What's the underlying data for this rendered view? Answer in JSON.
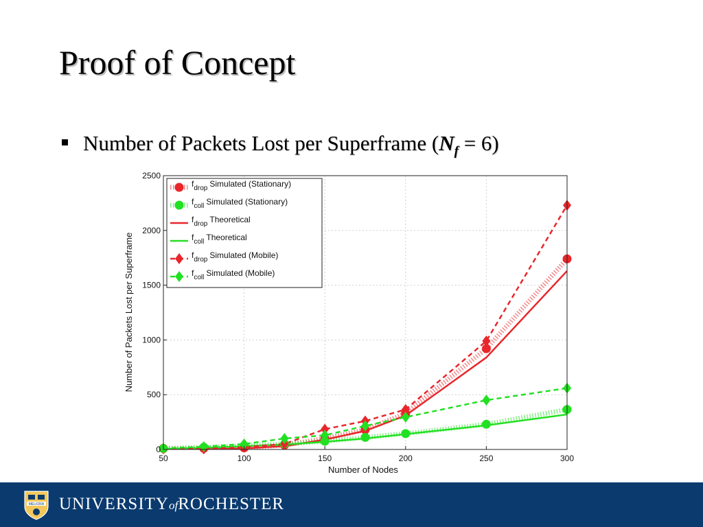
{
  "slide": {
    "title": "Proof of Concept",
    "bullet": {
      "text": "Number of Packets Lost per Superframe (",
      "variable": "N",
      "variable_sub": "f",
      "suffix": " = 6)"
    }
  },
  "footer": {
    "university_prefix": "UNIVERSITY",
    "university_of": "of",
    "university_suffix": "ROCHESTER",
    "seal_text": "MELIORA"
  },
  "chart_data": {
    "type": "line",
    "xlabel": "Number of Nodes",
    "ylabel": "Number of Packets Lost per Superframe",
    "xlim": [
      50,
      300
    ],
    "ylim": [
      0,
      2500
    ],
    "xticks": [
      50,
      100,
      150,
      200,
      250,
      300
    ],
    "yticks": [
      0,
      500,
      1000,
      1500,
      2000,
      2500
    ],
    "grid": true,
    "legend_position": "top-left",
    "series": [
      {
        "label": "f",
        "sub": "drop",
        "name": "Simulated (Stationary)",
        "color": "#e8262b",
        "style": "hatched",
        "marker": "circle",
        "x": [
          50,
          75,
          100,
          125,
          150,
          175,
          200,
          250,
          300
        ],
        "y": [
          10,
          10,
          15,
          40,
          100,
          180,
          330,
          920,
          1740
        ]
      },
      {
        "label": "f",
        "sub": "coll",
        "name": "Simulated (Stationary)",
        "color": "#22e022",
        "style": "hatched",
        "marker": "circle",
        "x": [
          50,
          75,
          100,
          125,
          150,
          175,
          200,
          250,
          300
        ],
        "y": [
          8,
          20,
          35,
          50,
          75,
          110,
          145,
          230,
          365
        ]
      },
      {
        "label": "f",
        "sub": "drop",
        "name": "Theoretical",
        "color": "#e8262b",
        "style": "solid",
        "marker": "none",
        "x": [
          50,
          75,
          100,
          125,
          150,
          175,
          200,
          250,
          300
        ],
        "y": [
          0,
          0,
          10,
          30,
          90,
          170,
          310,
          840,
          1630
        ]
      },
      {
        "label": "f",
        "sub": "coll",
        "name": "Theoretical",
        "color": "#22e022",
        "style": "solid",
        "marker": "none",
        "x": [
          50,
          75,
          100,
          125,
          150,
          175,
          200,
          250,
          300
        ],
        "y": [
          5,
          15,
          30,
          45,
          70,
          100,
          140,
          220,
          320
        ]
      },
      {
        "label": "f",
        "sub": "drop",
        "name": "Simulated (Mobile)",
        "color": "#e8262b",
        "style": "dashed",
        "marker": "diamond",
        "x": [
          50,
          75,
          100,
          125,
          150,
          175,
          200,
          250,
          300
        ],
        "y": [
          5,
          5,
          20,
          50,
          185,
          260,
          365,
          990,
          2230
        ]
      },
      {
        "label": "f",
        "sub": "coll",
        "name": "Simulated (Mobile)",
        "color": "#22e022",
        "style": "dashed",
        "marker": "diamond",
        "x": [
          50,
          75,
          100,
          125,
          150,
          175,
          200,
          250,
          300
        ],
        "y": [
          10,
          25,
          50,
          100,
          130,
          215,
          295,
          450,
          560
        ]
      }
    ]
  }
}
